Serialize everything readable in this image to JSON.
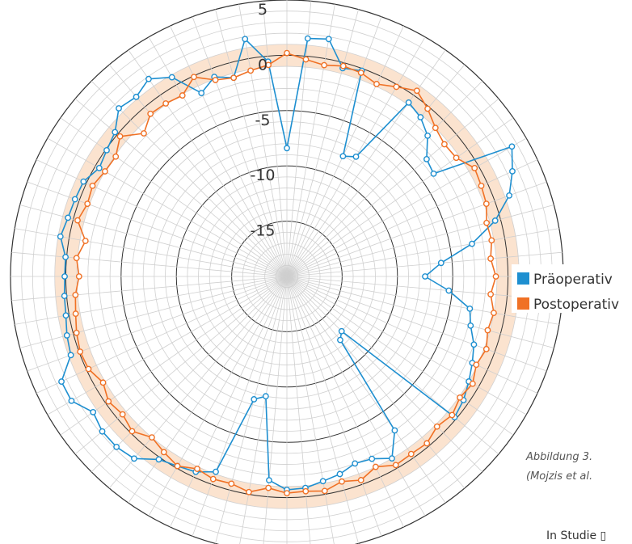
{
  "chart_data": {
    "type": "polar-line",
    "radial_axis": {
      "min": -20,
      "max": 5,
      "ticks": [
        5,
        0,
        -5,
        -10,
        -15
      ],
      "minor_step": 1
    },
    "angular_divisions": 72,
    "band": {
      "from": -1,
      "to": 1,
      "color": "#fbe3cf"
    },
    "series": [
      {
        "name": "Präoperativ",
        "color": "#1e8fd0",
        "angles_deg": [
          0,
          5,
          10,
          15,
          20,
          25,
          30,
          35,
          40,
          45,
          50,
          55,
          60,
          65,
          70,
          75,
          80,
          85,
          90,
          95,
          100,
          105,
          110,
          115,
          120,
          125,
          130,
          135,
          140,
          145,
          150,
          155,
          160,
          165,
          170,
          175,
          180,
          185,
          190,
          195,
          200,
          205,
          210,
          215,
          220,
          225,
          230,
          235,
          240,
          245,
          250,
          255,
          260,
          265,
          270,
          275,
          280,
          285,
          290,
          295,
          300,
          305,
          310,
          315,
          320,
          325,
          330,
          335,
          340,
          345,
          350,
          355
        ],
        "values": [
          -8.4,
          1.6,
          1.8,
          -0.5,
          -0.2,
          -8,
          -7.5,
          -0.8,
          -1.2,
          -2,
          -3.5,
          -3.8,
          3.5,
          2.5,
          1.4,
          -0.5,
          -3,
          -6,
          -7.5,
          -5.3,
          -3.2,
          -2.8,
          -2,
          -1.5,
          -1,
          -0.5,
          -0.2,
          -13,
          -12.5,
          -3,
          -1,
          -1.8,
          -2,
          -1.5,
          -1.2,
          -0.8,
          -0.7,
          -1.5,
          -9,
          -8.5,
          -1.2,
          -0.5,
          -0.2,
          0.2,
          1.5,
          1.8,
          1.8,
          1.4,
          2.5,
          2.5,
          0.8,
          0.6,
          0.3,
          0.2,
          0.1,
          0.1,
          0.8,
          0.5,
          0.4,
          0.3,
          -0.4,
          -0.1,
          0.3,
          1.5,
          1.2,
          1.8,
          0.8,
          -1.7,
          -0.8,
          -1.4,
          1.8,
          -0.5
        ]
      },
      {
        "name": "Postoperativ",
        "color": "#f07125",
        "angles_deg": [
          0,
          5,
          10,
          15,
          20,
          25,
          30,
          35,
          40,
          45,
          50,
          55,
          60,
          65,
          70,
          75,
          80,
          85,
          90,
          95,
          100,
          105,
          110,
          115,
          120,
          125,
          130,
          135,
          140,
          145,
          150,
          155,
          160,
          165,
          170,
          175,
          180,
          185,
          190,
          195,
          200,
          205,
          210,
          215,
          220,
          225,
          230,
          235,
          240,
          245,
          250,
          255,
          260,
          265,
          270,
          275,
          280,
          285,
          290,
          295,
          300,
          305,
          310,
          315,
          320,
          325,
          330,
          335,
          340,
          345,
          350,
          355
        ],
        "values": [
          0.2,
          -0.3,
          -0.6,
          -0.3,
          -0.4,
          -0.8,
          -0.2,
          0.5,
          -0.2,
          -1,
          -1.4,
          -1.3,
          -0.4,
          -0.6,
          -0.8,
          -1.3,
          -1.2,
          -1.5,
          -1.1,
          -1.5,
          -1,
          -1.2,
          -0.8,
          -1.1,
          -0.6,
          -0.9,
          -0.5,
          -0.8,
          -0.3,
          -0.4,
          -0.3,
          -1,
          -0.4,
          -0.8,
          -0.3,
          -0.5,
          -0.4,
          -0.8,
          -0.2,
          -0.6,
          -0.5,
          -0.8,
          -0.2,
          -0.6,
          -1,
          -0.2,
          -0.6,
          -0.3,
          -0.8,
          -0.2,
          -0.1,
          -0.3,
          -0.6,
          -0.8,
          -1.2,
          -0.9,
          -1.5,
          -0.4,
          -0.8,
          -0.6,
          -1,
          -1.1,
          -0.3,
          -1.7,
          -0.8,
          -0.9,
          -1.1,
          -0.1,
          -1.1,
          -1.4,
          -1.1,
          -0.8
        ]
      }
    ],
    "legend": {
      "position": "right"
    }
  },
  "caption": {
    "line1": "Abbildung 3.",
    "line2": "(Mojzis et al."
  },
  "footer": {
    "text": "In Studie ▯"
  }
}
